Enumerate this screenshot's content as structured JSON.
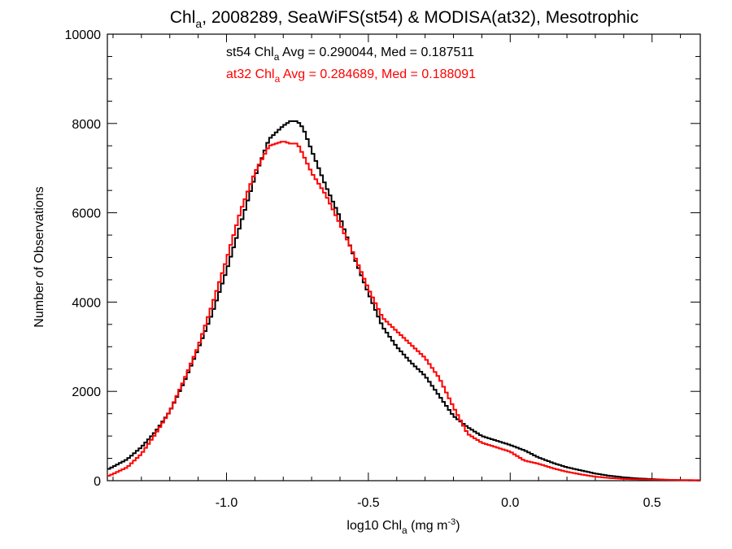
{
  "chart_data": {
    "type": "line",
    "style": "step-histogram",
    "title": {
      "main": "Chl",
      "sub": "a",
      "rest": ", 2008289, SeaWiFS(st54) & MODISA(at32), Mesotrophic"
    },
    "xlabel": {
      "main": "log10 Chl",
      "sub": "a",
      "rest": " (mg m",
      "sup": "-3",
      "end": ")"
    },
    "ylabel": "Number of Observations",
    "xlim": [
      -1.42,
      0.67
    ],
    "ylim": [
      0,
      10000
    ],
    "x_ticks": [
      -1.0,
      -0.5,
      0.0,
      0.5
    ],
    "x_tick_labels": [
      "-1.0",
      "-0.5",
      "0.0",
      "0.5"
    ],
    "y_ticks": [
      0,
      2000,
      4000,
      6000,
      8000,
      10000
    ],
    "y_tick_labels": [
      "0",
      "2000",
      "4000",
      "6000",
      "8000",
      "10000"
    ],
    "grid": false,
    "annotations": [
      {
        "prefix": "st54 Chl",
        "sub": "a",
        "suffix": " Avg = 0.290044, Med = 0.187511",
        "color": "#000000"
      },
      {
        "prefix": "at32 Chl",
        "sub": "a",
        "suffix": " Avg = 0.284689, Med = 0.188091",
        "color": "#ff0000"
      }
    ],
    "series": [
      {
        "color": "#000000",
        "x": [
          -1.42,
          -1.4,
          -1.35,
          -1.3,
          -1.25,
          -1.2,
          -1.15,
          -1.1,
          -1.05,
          -1.0,
          -0.95,
          -0.9,
          -0.85,
          -0.8,
          -0.775,
          -0.75,
          -0.73,
          -0.7,
          -0.65,
          -0.6,
          -0.55,
          -0.5,
          -0.45,
          -0.4,
          -0.35,
          -0.3,
          -0.25,
          -0.2,
          -0.15,
          -0.1,
          -0.05,
          0.0,
          0.05,
          0.1,
          0.15,
          0.2,
          0.25,
          0.3,
          0.35,
          0.4,
          0.45,
          0.5,
          0.55,
          0.6,
          0.67
        ],
        "y": [
          250,
          310,
          480,
          750,
          1100,
          1550,
          2200,
          2950,
          3750,
          4700,
          5750,
          6800,
          7650,
          7950,
          8050,
          8050,
          7900,
          7400,
          6600,
          5900,
          5000,
          4200,
          3450,
          3000,
          2650,
          2350,
          1900,
          1450,
          1200,
          1000,
          900,
          800,
          680,
          520,
          400,
          300,
          230,
          160,
          110,
          75,
          50,
          35,
          20,
          10,
          5
        ]
      },
      {
        "color": "#ff0000",
        "x": [
          -1.42,
          -1.4,
          -1.35,
          -1.3,
          -1.25,
          -1.2,
          -1.15,
          -1.1,
          -1.05,
          -1.0,
          -0.95,
          -0.9,
          -0.85,
          -0.8,
          -0.775,
          -0.75,
          -0.73,
          -0.7,
          -0.65,
          -0.6,
          -0.55,
          -0.5,
          -0.45,
          -0.4,
          -0.35,
          -0.3,
          -0.25,
          -0.2,
          -0.15,
          -0.1,
          -0.05,
          0.0,
          0.05,
          0.1,
          0.15,
          0.2,
          0.25,
          0.3,
          0.35,
          0.4,
          0.45,
          0.5,
          0.55,
          0.6,
          0.67
        ],
        "y": [
          100,
          150,
          300,
          600,
          1050,
          1550,
          2250,
          3000,
          3950,
          4950,
          6050,
          6900,
          7500,
          7600,
          7550,
          7550,
          7300,
          6900,
          6400,
          5750,
          5050,
          4300,
          3650,
          3350,
          3050,
          2750,
          2300,
          1650,
          1050,
          850,
          750,
          650,
          450,
          380,
          280,
          200,
          140,
          90,
          60,
          40,
          30,
          25,
          20,
          15,
          10
        ]
      }
    ]
  }
}
